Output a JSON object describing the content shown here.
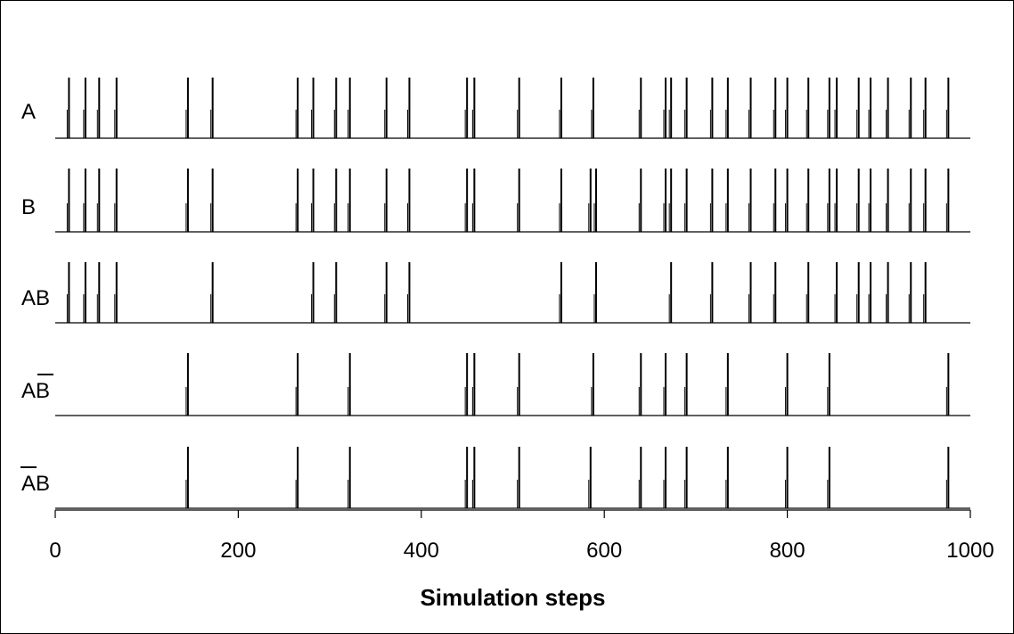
{
  "chart_data": {
    "type": "raster",
    "xlabel": "Simulation steps",
    "xlim": [
      0,
      1000
    ],
    "x_ticks": [
      0,
      200,
      400,
      600,
      800,
      1000
    ],
    "rows": [
      {
        "name": "A",
        "label_text": "A",
        "overline": "none",
        "events": [
          15,
          33,
          48,
          67,
          145,
          172,
          265,
          282,
          307,
          322,
          362,
          387,
          450,
          458,
          507,
          553,
          588,
          640,
          667,
          673,
          690,
          718,
          735,
          760,
          787,
          800,
          823,
          846,
          854,
          878,
          891,
          910,
          935,
          951,
          976
        ]
      },
      {
        "name": "B",
        "label_text": "B",
        "overline": "none",
        "events": [
          15,
          33,
          48,
          67,
          145,
          172,
          265,
          282,
          307,
          322,
          362,
          387,
          450,
          458,
          507,
          553,
          585,
          591,
          640,
          667,
          673,
          690,
          718,
          735,
          760,
          787,
          800,
          823,
          846,
          854,
          878,
          891,
          910,
          935,
          951,
          976
        ]
      },
      {
        "name": "AB",
        "label_text": "AB",
        "overline": "none",
        "events": [
          15,
          33,
          48,
          67,
          172,
          282,
          307,
          362,
          387,
          553,
          591,
          673,
          718,
          760,
          787,
          823,
          854,
          878,
          891,
          910,
          935,
          951
        ]
      },
      {
        "name": "A not-B",
        "label_text": "AB",
        "overline": "second",
        "events": [
          145,
          265,
          322,
          450,
          458,
          507,
          588,
          640,
          667,
          690,
          735,
          800,
          846,
          976
        ]
      },
      {
        "name": "not-A B",
        "label_text": "AB",
        "overline": "first",
        "events": [
          145,
          265,
          322,
          450,
          458,
          507,
          585,
          640,
          667,
          690,
          735,
          800,
          846,
          976
        ]
      }
    ]
  }
}
